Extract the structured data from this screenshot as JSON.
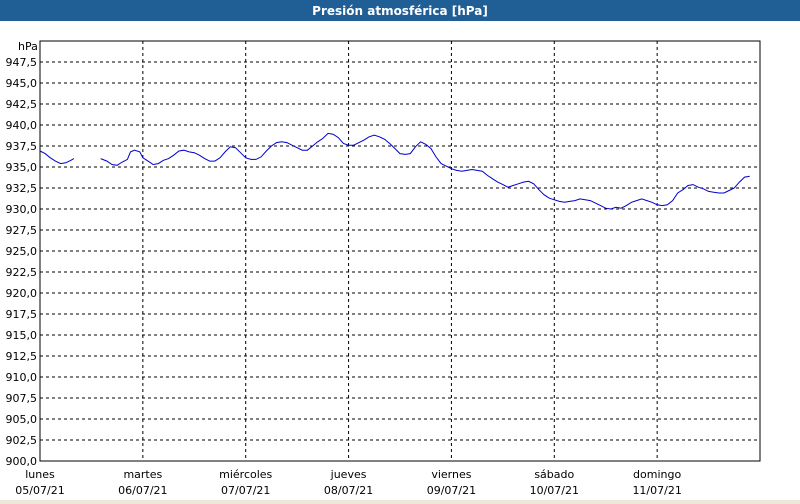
{
  "window": {
    "title": "Presión atmosférica [hPa]"
  },
  "chart_data": {
    "type": "line",
    "title": "Presión atmosférica [hPa]",
    "ylabel": "hPa",
    "ylim": [
      900.0,
      950.0
    ],
    "y_ticks": [
      "900,0",
      "902,5",
      "905,0",
      "907,5",
      "910,0",
      "912,5",
      "915,0",
      "917,5",
      "920,0",
      "922,5",
      "925,0",
      "927,5",
      "930,0",
      "932,5",
      "935,0",
      "937,5",
      "940,0",
      "942,5",
      "945,0",
      "947,5"
    ],
    "x_range_days": [
      0,
      7.0
    ],
    "x_ticks": [
      {
        "day": "lunes",
        "date": "05/07/21",
        "pos": 0
      },
      {
        "day": "martes",
        "date": "06/07/21",
        "pos": 1
      },
      {
        "day": "miércoles",
        "date": "07/07/21",
        "pos": 2
      },
      {
        "day": "jueves",
        "date": "08/07/21",
        "pos": 3
      },
      {
        "day": "viernes",
        "date": "09/07/21",
        "pos": 4
      },
      {
        "day": "sábado",
        "date": "10/07/21",
        "pos": 5
      },
      {
        "day": "domingo",
        "date": "11/07/21",
        "pos": 6
      }
    ],
    "line_color": "#0000cc",
    "grid": true,
    "series": [
      {
        "segments": [
          [
            [
              0.0,
              936.9
            ],
            [
              0.05,
              936.6
            ],
            [
              0.1,
              936.1
            ],
            [
              0.15,
              935.7
            ],
            [
              0.2,
              935.4
            ],
            [
              0.25,
              935.5
            ],
            [
              0.3,
              935.8
            ],
            [
              0.33,
              936.0
            ]
          ],
          [
            [
              0.59,
              936.0
            ],
            [
              0.65,
              935.7
            ],
            [
              0.7,
              935.3
            ],
            [
              0.75,
              935.2
            ],
            [
              0.8,
              935.6
            ],
            [
              0.85,
              935.9
            ],
            [
              0.88,
              936.8
            ],
            [
              0.92,
              937.0
            ],
            [
              0.97,
              936.8
            ],
            [
              1.0,
              936.1
            ],
            [
              1.05,
              935.7
            ],
            [
              1.1,
              935.3
            ],
            [
              1.15,
              935.4
            ],
            [
              1.2,
              935.8
            ],
            [
              1.25,
              936.0
            ],
            [
              1.3,
              936.4
            ],
            [
              1.35,
              936.9
            ],
            [
              1.4,
              937.0
            ],
            [
              1.45,
              936.8
            ],
            [
              1.5,
              936.7
            ],
            [
              1.55,
              936.4
            ],
            [
              1.6,
              936.0
            ],
            [
              1.65,
              935.7
            ],
            [
              1.7,
              935.7
            ],
            [
              1.75,
              936.1
            ],
            [
              1.8,
              936.8
            ],
            [
              1.85,
              937.4
            ],
            [
              1.9,
              937.3
            ],
            [
              1.95,
              936.7
            ],
            [
              2.0,
              936.1
            ],
            [
              2.05,
              935.9
            ],
            [
              2.1,
              935.9
            ],
            [
              2.15,
              936.2
            ],
            [
              2.2,
              936.9
            ],
            [
              2.25,
              937.5
            ],
            [
              2.3,
              937.9
            ],
            [
              2.35,
              938.0
            ],
            [
              2.4,
              937.9
            ],
            [
              2.45,
              937.6
            ],
            [
              2.5,
              937.3
            ],
            [
              2.55,
              937.0
            ],
            [
              2.6,
              937.0
            ],
            [
              2.65,
              937.5
            ],
            [
              2.7,
              938.0
            ],
            [
              2.75,
              938.4
            ],
            [
              2.8,
              939.0
            ],
            [
              2.85,
              938.9
            ],
            [
              2.9,
              938.5
            ],
            [
              2.95,
              937.8
            ],
            [
              3.0,
              937.6
            ],
            [
              3.05,
              937.6
            ],
            [
              3.1,
              937.9
            ],
            [
              3.15,
              938.2
            ],
            [
              3.2,
              938.6
            ],
            [
              3.25,
              938.8
            ],
            [
              3.3,
              938.6
            ],
            [
              3.35,
              938.3
            ],
            [
              3.4,
              937.8
            ],
            [
              3.45,
              937.2
            ],
            [
              3.5,
              936.6
            ],
            [
              3.55,
              936.5
            ],
            [
              3.6,
              936.6
            ],
            [
              3.65,
              937.4
            ],
            [
              3.7,
              938.0
            ],
            [
              3.75,
              937.7
            ],
            [
              3.8,
              937.2
            ],
            [
              3.85,
              936.2
            ],
            [
              3.9,
              935.4
            ],
            [
              3.95,
              935.1
            ],
            [
              4.0,
              934.8
            ],
            [
              4.05,
              934.6
            ],
            [
              4.1,
              934.5
            ],
            [
              4.15,
              934.6
            ],
            [
              4.2,
              934.7
            ],
            [
              4.25,
              934.6
            ],
            [
              4.3,
              934.5
            ],
            [
              4.35,
              934.0
            ],
            [
              4.4,
              933.6
            ],
            [
              4.45,
              933.2
            ],
            [
              4.5,
              932.9
            ],
            [
              4.55,
              932.6
            ],
            [
              4.6,
              932.8
            ],
            [
              4.65,
              933.0
            ],
            [
              4.7,
              933.2
            ],
            [
              4.75,
              933.3
            ],
            [
              4.8,
              933.0
            ],
            [
              4.85,
              932.3
            ],
            [
              4.9,
              931.7
            ],
            [
              4.95,
              931.3
            ],
            [
              5.0,
              931.1
            ],
            [
              5.05,
              930.9
            ],
            [
              5.1,
              930.8
            ],
            [
              5.15,
              930.9
            ],
            [
              5.2,
              931.0
            ],
            [
              5.25,
              931.2
            ],
            [
              5.3,
              931.1
            ],
            [
              5.35,
              931.0
            ],
            [
              5.4,
              930.7
            ],
            [
              5.45,
              930.4
            ],
            [
              5.5,
              930.1
            ],
            [
              5.55,
              930.0
            ],
            [
              5.6,
              930.2
            ],
            [
              5.65,
              930.1
            ],
            [
              5.7,
              930.4
            ],
            [
              5.75,
              930.8
            ],
            [
              5.8,
              931.0
            ],
            [
              5.85,
              931.2
            ],
            [
              5.9,
              931.0
            ],
            [
              5.95,
              930.8
            ],
            [
              6.0,
              930.5
            ],
            [
              6.05,
              930.4
            ],
            [
              6.1,
              930.5
            ],
            [
              6.15,
              931.0
            ],
            [
              6.2,
              931.9
            ],
            [
              6.25,
              932.3
            ],
            [
              6.3,
              932.8
            ],
            [
              6.35,
              932.9
            ],
            [
              6.4,
              932.6
            ],
            [
              6.45,
              932.4
            ],
            [
              6.5,
              932.1
            ],
            [
              6.55,
              932.0
            ],
            [
              6.6,
              931.9
            ],
            [
              6.65,
              931.9
            ],
            [
              6.7,
              932.2
            ],
            [
              6.75,
              932.5
            ],
            [
              6.8,
              933.2
            ],
            [
              6.85,
              933.8
            ],
            [
              6.9,
              933.9
            ]
          ]
        ]
      }
    ]
  }
}
